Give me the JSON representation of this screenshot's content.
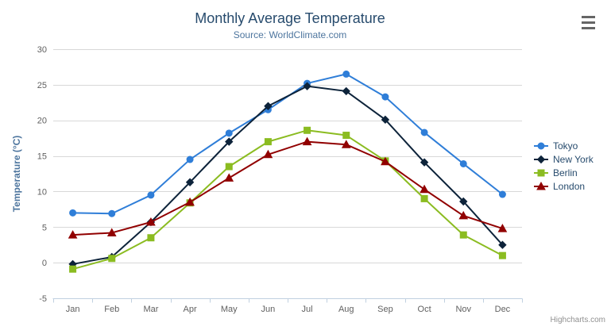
{
  "page": {
    "credits_label": "Highcharts.com"
  },
  "chart_data": {
    "type": "line",
    "title": "Monthly Average Temperature",
    "subtitle": "Source: WorldClimate.com",
    "xlabel": "",
    "ylabel": "Temperature (°C)",
    "ylim": [
      -5,
      30
    ],
    "yticks": [
      -5,
      0,
      5,
      10,
      15,
      20,
      25,
      30
    ],
    "grid": true,
    "legend_position": "right",
    "categories": [
      "Jan",
      "Feb",
      "Mar",
      "Apr",
      "May",
      "Jun",
      "Jul",
      "Aug",
      "Sep",
      "Oct",
      "Nov",
      "Dec"
    ],
    "series": [
      {
        "name": "Tokyo",
        "color": "#2f7ed8",
        "marker": "circle",
        "values": [
          7.0,
          6.9,
          9.5,
          14.5,
          18.2,
          21.5,
          25.2,
          26.5,
          23.3,
          18.3,
          13.9,
          9.6
        ]
      },
      {
        "name": "New York",
        "color": "#0d233a",
        "marker": "diamond",
        "values": [
          -0.2,
          0.8,
          5.7,
          11.3,
          17.0,
          22.0,
          24.8,
          24.1,
          20.1,
          14.1,
          8.6,
          2.5
        ]
      },
      {
        "name": "Berlin",
        "color": "#8bbc21",
        "marker": "square",
        "values": [
          -0.9,
          0.6,
          3.5,
          8.4,
          13.5,
          17.0,
          18.6,
          17.9,
          14.3,
          9.0,
          3.9,
          1.0
        ]
      },
      {
        "name": "London",
        "color": "#910000",
        "marker": "triangle",
        "values": [
          3.9,
          4.2,
          5.7,
          8.5,
          11.9,
          15.2,
          17.0,
          16.6,
          14.2,
          10.3,
          6.6,
          4.8
        ]
      }
    ],
    "styles": {
      "grid_color": "#d8d8d8",
      "axis_line_color": "#c0d0e0",
      "tick_label_color": "#606060",
      "title_color": "#274b6d",
      "subtitle_color": "#4d759e",
      "axis_title_color": "#4d759e",
      "legend_text_color": "#274b6d",
      "credits_color": "#909090",
      "menu_icon_color": "#666666"
    }
  }
}
